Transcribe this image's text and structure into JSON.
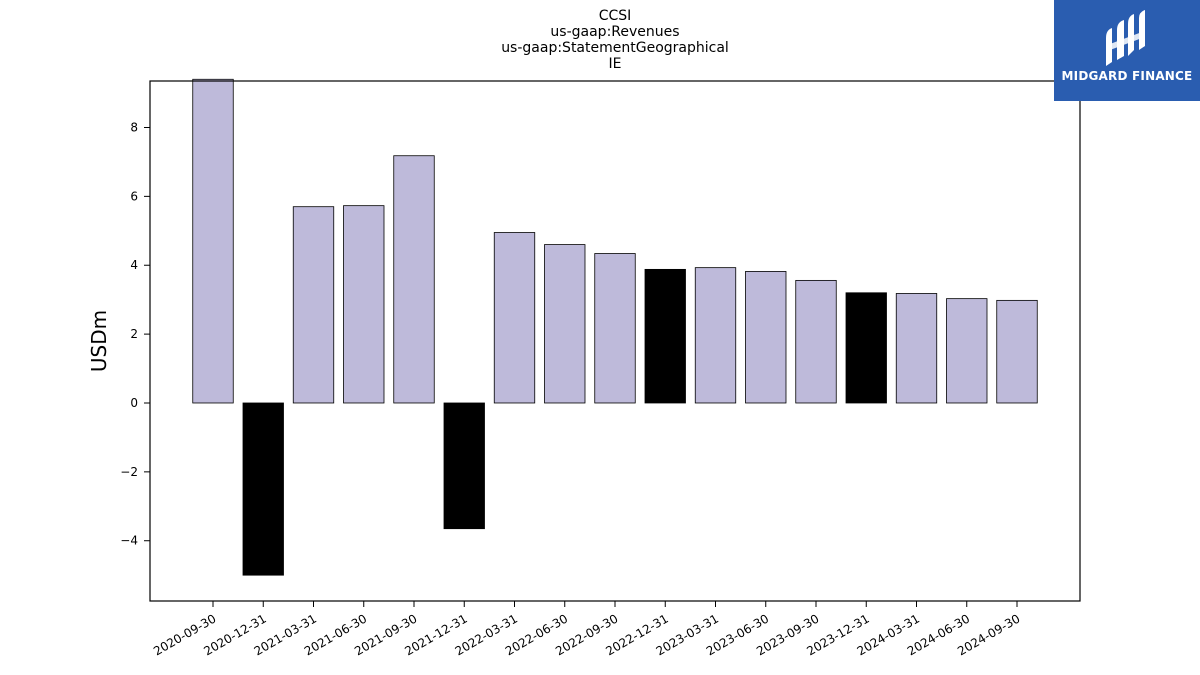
{
  "chart_data": {
    "type": "bar",
    "title_lines": [
      "CCSI",
      "us-gaap:Revenues",
      "us-gaap:StatementGeographical",
      "IE"
    ],
    "ylabel": "USDm",
    "xlabel": "",
    "categories": [
      "2020-09-30",
      "2020-12-31",
      "2021-03-31",
      "2021-06-30",
      "2021-09-30",
      "2021-12-31",
      "2022-03-31",
      "2022-06-30",
      "2022-09-30",
      "2022-12-31",
      "2023-03-31",
      "2023-06-30",
      "2023-09-30",
      "2023-12-31",
      "2024-03-31",
      "2024-06-30",
      "2024-09-30"
    ],
    "values": [
      9.4,
      -5.0,
      5.7,
      5.73,
      7.18,
      -3.65,
      4.95,
      4.6,
      4.34,
      3.88,
      3.93,
      3.82,
      3.56,
      3.2,
      3.18,
      3.03,
      2.98
    ],
    "highlight": [
      false,
      true,
      false,
      false,
      false,
      true,
      false,
      false,
      false,
      true,
      false,
      false,
      false,
      true,
      false,
      false,
      false
    ],
    "ylim": [
      -5.75,
      9.35
    ],
    "yticks": [
      -4,
      -2,
      0,
      2,
      4,
      6,
      8
    ],
    "ytick_labels": [
      "−4",
      "−2",
      "0",
      "2",
      "4",
      "6",
      "8"
    ],
    "colors": {
      "normal": "#bebada",
      "highlight": "#000000",
      "edge": "#000000"
    },
    "grid": false,
    "legend": "none"
  },
  "logo": {
    "text": "MIDGARD FINANCE",
    "background": "#2a5db0"
  }
}
